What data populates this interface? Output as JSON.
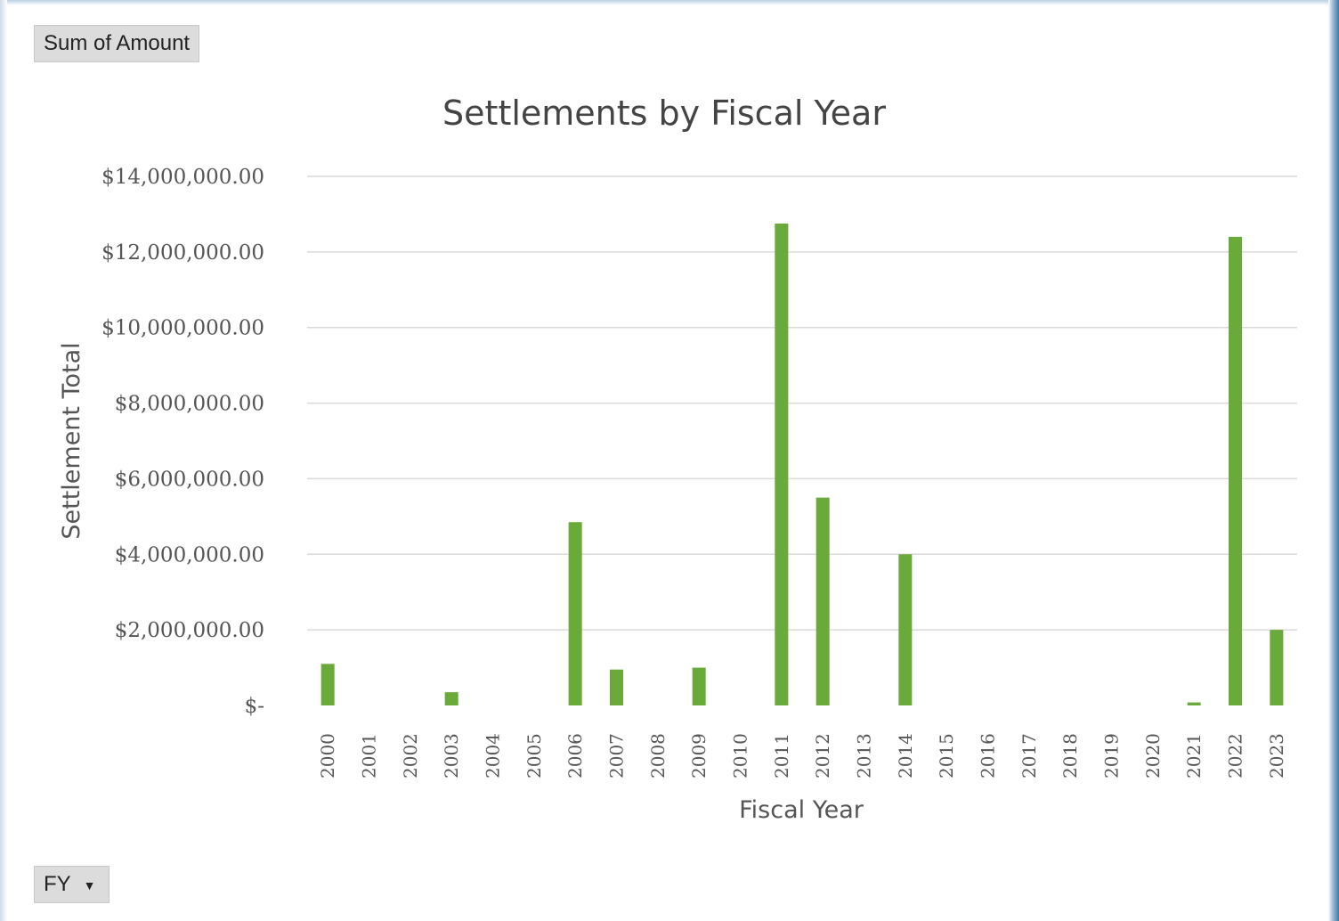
{
  "pivot": {
    "value_field_label": "Sum of Amount",
    "filter_field_label": "FY",
    "dropdown_icon": "triangle-down-icon"
  },
  "colors": {
    "bar": "#6aaa3a",
    "grid": "#d9d9d9"
  },
  "chart_data": {
    "type": "bar",
    "title": "Settlements by Fiscal Year",
    "xlabel": "Fiscal Year",
    "ylabel": "Settlement Total",
    "ylim": [
      0,
      14000000
    ],
    "yticks": [
      {
        "value": 0,
        "label": "$-"
      },
      {
        "value": 2000000,
        "label": "$2,000,000.00"
      },
      {
        "value": 4000000,
        "label": "$4,000,000.00"
      },
      {
        "value": 6000000,
        "label": "$6,000,000.00"
      },
      {
        "value": 8000000,
        "label": "$8,000,000.00"
      },
      {
        "value": 10000000,
        "label": "$10,000,000.00"
      },
      {
        "value": 12000000,
        "label": "$12,000,000.00"
      },
      {
        "value": 14000000,
        "label": "$14,000,000.00"
      }
    ],
    "grid": true,
    "legend": "none",
    "categories": [
      "2000",
      "2001",
      "2002",
      "2003",
      "2004",
      "2005",
      "2006",
      "2007",
      "2008",
      "2009",
      "2010",
      "2011",
      "2012",
      "2013",
      "2014",
      "2015",
      "2016",
      "2017",
      "2018",
      "2019",
      "2020",
      "2021",
      "2022",
      "2023"
    ],
    "values": [
      1100000,
      0,
      0,
      350000,
      0,
      0,
      4850000,
      950000,
      0,
      1000000,
      0,
      12750000,
      5500000,
      0,
      4000000,
      0,
      0,
      0,
      0,
      0,
      0,
      80000,
      12400000,
      2000000
    ]
  }
}
